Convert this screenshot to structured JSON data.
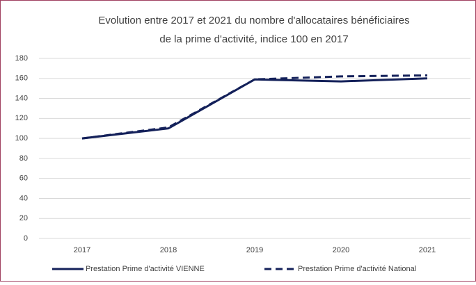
{
  "chart_data": {
    "type": "line",
    "title": [
      "Evolution entre 2017 et 2021 du nombre d'allocataires bénéficiaires",
      "de la prime d'activité,  indice 100 en 2017"
    ],
    "categories": [
      "2017",
      "2018",
      "2019",
      "2020",
      "2021"
    ],
    "series": [
      {
        "name": "Prestation Prime d'activité VIENNE",
        "color": "#14215a",
        "dash": false,
        "values": [
          100,
          110,
          159,
          157,
          160
        ]
      },
      {
        "name": "Prestation Prime d'activité National",
        "color": "#14215a",
        "dash": true,
        "values": [
          100,
          111,
          159,
          162,
          163
        ]
      }
    ],
    "ylim": [
      0,
      180
    ],
    "yticks": [
      0,
      20,
      40,
      60,
      80,
      100,
      120,
      140,
      160,
      180
    ],
    "grid": true,
    "legend": "bottom"
  }
}
